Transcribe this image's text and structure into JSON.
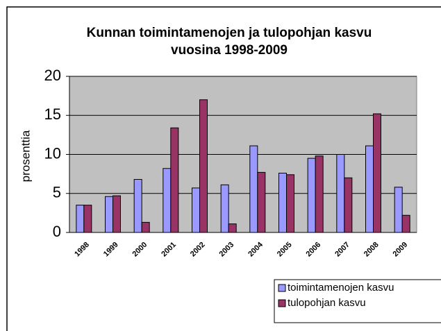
{
  "chart_data": {
    "type": "bar",
    "title": [
      "Kunnan toimintamenojen ja tulopohjan kasvu",
      "vuosina 1998-2009"
    ],
    "y_label": "prosenttia",
    "categories": [
      "1998",
      "1999",
      "2000",
      "2001",
      "2002",
      "2003",
      "2004",
      "2005",
      "2006",
      "2007",
      "2008",
      "2009"
    ],
    "series": [
      {
        "name": "toimintamenojen kasvu",
        "color": "#9999ff",
        "values": [
          3.5,
          4.6,
          6.8,
          8.2,
          5.7,
          6.1,
          11.1,
          7.6,
          9.5,
          10.0,
          11.1,
          5.8
        ]
      },
      {
        "name": "tulopohjan kasvu",
        "color": "#993366",
        "values": [
          3.5,
          4.7,
          1.3,
          13.4,
          17.0,
          1.1,
          7.7,
          7.4,
          9.8,
          7.0,
          15.2,
          2.2
        ]
      }
    ],
    "ylim": [
      0,
      20
    ],
    "yticks": [
      0,
      5,
      10,
      15,
      20
    ],
    "grid": true,
    "legend": "bottom-right"
  }
}
